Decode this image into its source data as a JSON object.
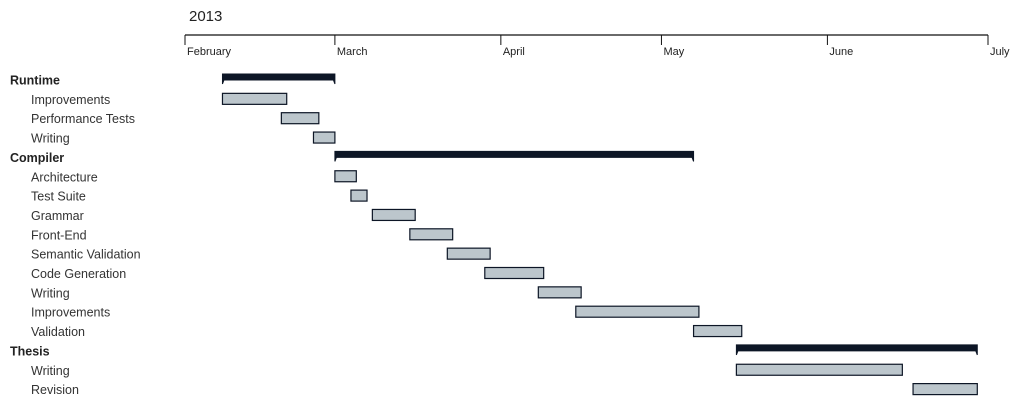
{
  "chart_data": {
    "type": "gantt",
    "title": "2013",
    "x_unit": "date",
    "xlim": [
      "2013-02-01",
      "2013-07-01"
    ],
    "months": [
      {
        "label": "February",
        "date": "2013-02-01"
      },
      {
        "label": "March",
        "date": "2013-03-01"
      },
      {
        "label": "April",
        "date": "2013-04-01"
      },
      {
        "label": "May",
        "date": "2013-05-01"
      },
      {
        "label": "June",
        "date": "2013-06-01"
      },
      {
        "label": "July",
        "date": "2013-07-01"
      }
    ],
    "rows": [
      {
        "label": "Runtime",
        "group": true,
        "start": "2013-02-08",
        "end": "2013-03-01"
      },
      {
        "label": "Improvements",
        "group": false,
        "start": "2013-02-08",
        "end": "2013-02-20"
      },
      {
        "label": "Performance Tests",
        "group": false,
        "start": "2013-02-19",
        "end": "2013-02-26"
      },
      {
        "label": "Writing",
        "group": false,
        "start": "2013-02-25",
        "end": "2013-03-01"
      },
      {
        "label": "Compiler",
        "group": true,
        "start": "2013-03-01",
        "end": "2013-05-07"
      },
      {
        "label": "Architecture",
        "group": false,
        "start": "2013-03-01",
        "end": "2013-03-05"
      },
      {
        "label": "Test Suite",
        "group": false,
        "start": "2013-03-04",
        "end": "2013-03-07"
      },
      {
        "label": "Grammar",
        "group": false,
        "start": "2013-03-08",
        "end": "2013-03-16"
      },
      {
        "label": "Front-End",
        "group": false,
        "start": "2013-03-15",
        "end": "2013-03-23"
      },
      {
        "label": "Semantic Validation",
        "group": false,
        "start": "2013-03-22",
        "end": "2013-03-30"
      },
      {
        "label": "Code Generation",
        "group": false,
        "start": "2013-03-29",
        "end": "2013-04-09"
      },
      {
        "label": "Writing",
        "group": false,
        "start": "2013-04-08",
        "end": "2013-04-16"
      },
      {
        "label": "Improvements",
        "group": false,
        "start": "2013-04-15",
        "end": "2013-05-08"
      },
      {
        "label": "Validation",
        "group": false,
        "start": "2013-05-07",
        "end": "2013-05-16"
      },
      {
        "label": "Thesis",
        "group": true,
        "start": "2013-05-15",
        "end": "2013-06-29"
      },
      {
        "label": "Writing",
        "group": false,
        "start": "2013-05-15",
        "end": "2013-06-15"
      },
      {
        "label": "Revision",
        "group": false,
        "start": "2013-06-17",
        "end": "2013-06-29"
      }
    ]
  },
  "colors": {
    "task_fill": "#bcc6cc",
    "task_stroke": "#0d1626",
    "summary_fill": "#0d1626"
  }
}
